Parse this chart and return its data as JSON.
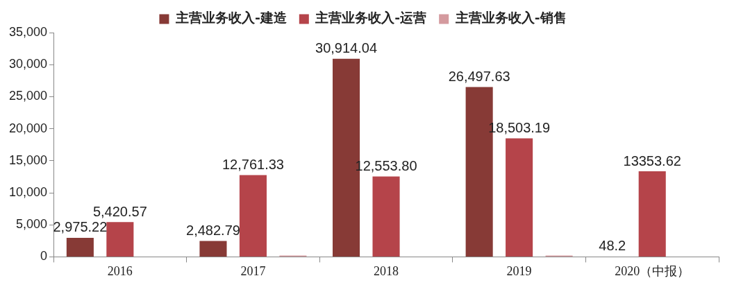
{
  "chart_data": {
    "type": "bar",
    "categories": [
      "2016",
      "2017",
      "2018",
      "2019",
      "2020（中报）"
    ],
    "series": [
      {
        "name": "主营业务收入-建造",
        "color": "#873a36",
        "values": [
          2975.22,
          2482.79,
          30914.04,
          26497.63,
          48.2
        ],
        "value_labels": [
          "2,975.22",
          "2,482.79",
          "30,914.04",
          "26,497.63",
          "48.2"
        ]
      },
      {
        "name": "主营业务收入-运营",
        "color": "#b5444a",
        "values": [
          5420.57,
          12761.33,
          12553.8,
          18503.19,
          13353.62
        ],
        "value_labels": [
          "5,420.57",
          "12,761.33",
          "12,553.80",
          "18,503.19",
          "13353.62"
        ]
      },
      {
        "name": "主营业务收入-销售",
        "color": "#d49a9e",
        "values": [
          null,
          200,
          null,
          200,
          null
        ]
      }
    ],
    "ylim": [
      0,
      35000
    ],
    "yticks": [
      {
        "value": 0,
        "label": "0"
      },
      {
        "value": 5000,
        "label": "5,000"
      },
      {
        "value": 10000,
        "label": "10,000"
      },
      {
        "value": 15000,
        "label": "15,000"
      },
      {
        "value": 20000,
        "label": "20,000"
      },
      {
        "value": 25000,
        "label": "25,000"
      },
      {
        "value": 30000,
        "label": "30,000"
      },
      {
        "value": 35000,
        "label": "35,000"
      }
    ],
    "grid": false,
    "legend": "top"
  }
}
